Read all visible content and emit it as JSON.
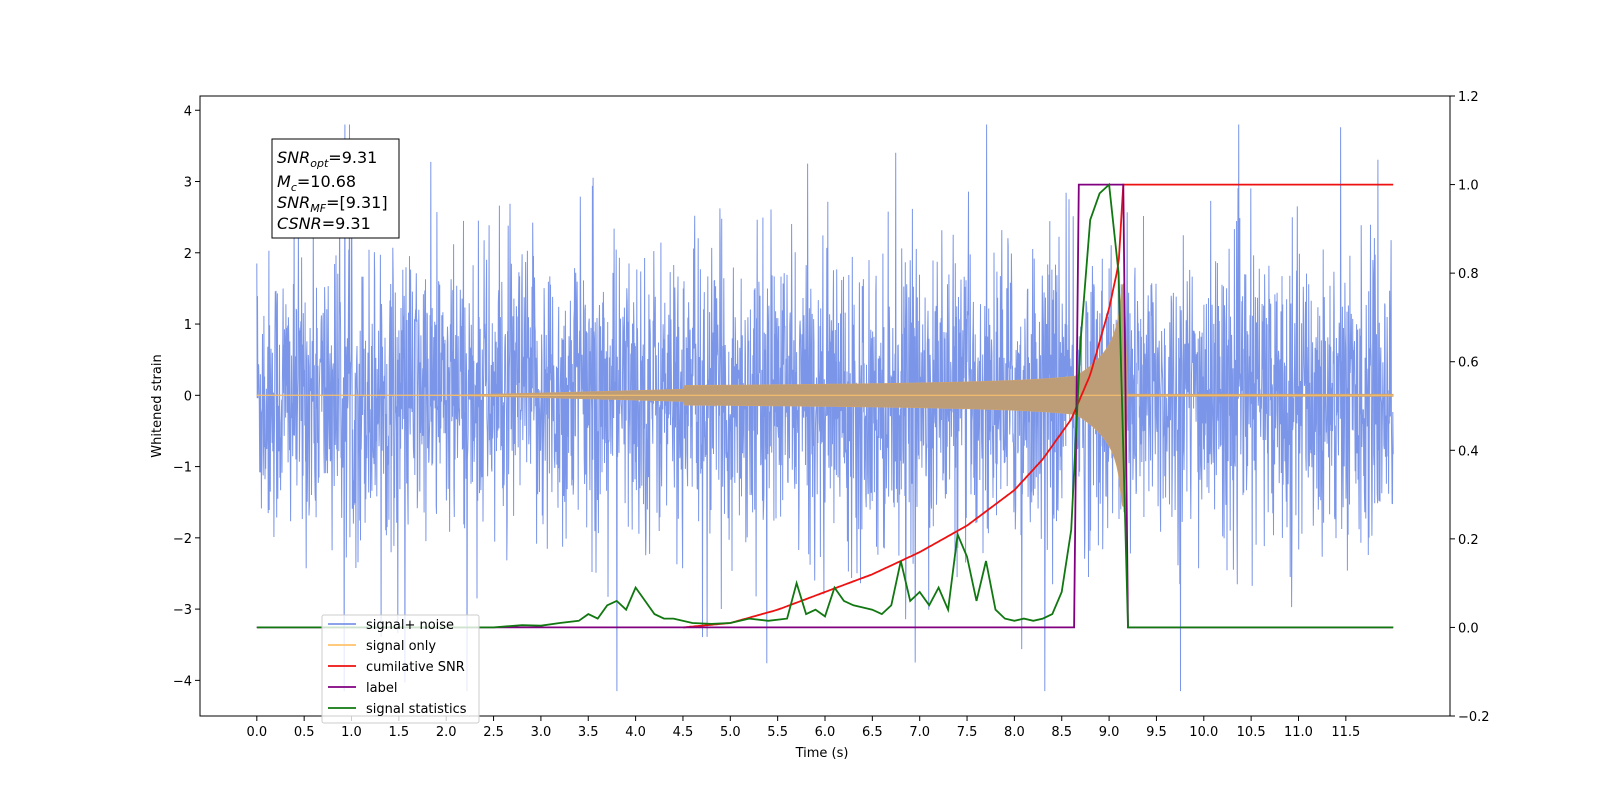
{
  "chart_data": {
    "type": "line",
    "xlabel": "Time (s)",
    "ylabel": "Whitened strain",
    "xlim": [
      -0.6,
      12.6
    ],
    "ylim": [
      -4.5,
      4.2
    ],
    "y2lim": [
      -0.2,
      1.2
    ],
    "xticks": [
      "0.0",
      "0.5",
      "1.0",
      "1.5",
      "2.0",
      "2.5",
      "3.0",
      "3.5",
      "4.0",
      "4.5",
      "5.0",
      "5.5",
      "6.0",
      "6.5",
      "7.0",
      "7.5",
      "8.0",
      "8.5",
      "9.0",
      "9.5",
      "10.0",
      "10.5",
      "11.0",
      "11.5"
    ],
    "yticks": [
      "4",
      "3",
      "2",
      "1",
      "0",
      "−1",
      "−2",
      "−3",
      "−4"
    ],
    "y2ticks": [
      "1.2",
      "1.0",
      "0.8",
      "0.6",
      "0.4",
      "0.2",
      "0.0",
      "−0.2"
    ],
    "legend_position": "lower-left",
    "legend": [
      {
        "label": "signal+ noise",
        "color": "#7b96e8"
      },
      {
        "label": "signal only",
        "color": "#ffc36a"
      },
      {
        "label": "cumilative SNR",
        "color": "#ee1111"
      },
      {
        "label": "label",
        "color": "#800080"
      },
      {
        "label": "signal statistics",
        "color": "#117711"
      }
    ],
    "annotation": {
      "snr_opt": {
        "base": "SNR",
        "sub": "opt",
        "value": "=9.31"
      },
      "mc": {
        "base": "M",
        "sub": "c",
        "value": "=10.68"
      },
      "snr_mf": {
        "base": "SNR",
        "sub": "MF",
        "value": "=[9.31]"
      },
      "csnr": {
        "base": "CSNR",
        "value": "=9.31"
      }
    },
    "series": [
      {
        "name": "signal+ noise",
        "axis": "left",
        "color": "#7b96e8",
        "description_amplitude": 2.6,
        "x_range": [
          0.0,
          12.0
        ]
      },
      {
        "name": "signal only",
        "axis": "left",
        "color": "#ffc36a",
        "chirp_merger_time": 9.15,
        "peak_amplitude": 1.0
      },
      {
        "name": "cumilative SNR",
        "axis": "right",
        "color": "#ee1111",
        "x": [
          4.5,
          5.0,
          5.5,
          6.0,
          6.5,
          7.0,
          7.5,
          8.0,
          8.3,
          8.6,
          8.8,
          9.0,
          9.1,
          9.15,
          9.2,
          12.0
        ],
        "y": [
          0.0,
          0.01,
          0.04,
          0.08,
          0.12,
          0.17,
          0.23,
          0.31,
          0.38,
          0.47,
          0.57,
          0.72,
          0.82,
          1.0,
          1.0,
          1.0
        ]
      },
      {
        "name": "label",
        "axis": "right",
        "color": "#800080",
        "x": [
          0.0,
          8.63,
          8.68,
          9.15,
          9.2,
          12.0
        ],
        "y": [
          0.0,
          0.0,
          1.0,
          1.0,
          0.0,
          0.0
        ]
      },
      {
        "name": "signal statistics",
        "axis": "right",
        "color": "#117711",
        "x": [
          0.0,
          2.5,
          2.8,
          3.0,
          3.2,
          3.4,
          3.5,
          3.6,
          3.7,
          3.8,
          3.9,
          4.0,
          4.1,
          4.2,
          4.3,
          4.4,
          4.6,
          4.8,
          5.0,
          5.2,
          5.4,
          5.6,
          5.7,
          5.8,
          5.9,
          6.0,
          6.1,
          6.2,
          6.3,
          6.4,
          6.5,
          6.6,
          6.7,
          6.8,
          6.9,
          7.0,
          7.1,
          7.2,
          7.3,
          7.4,
          7.5,
          7.6,
          7.7,
          7.8,
          7.9,
          8.0,
          8.1,
          8.2,
          8.3,
          8.4,
          8.5,
          8.6,
          8.7,
          8.8,
          8.9,
          9.0,
          9.1,
          9.15,
          9.2,
          12.0
        ],
        "y": [
          0.0,
          0.0,
          0.005,
          0.004,
          0.01,
          0.015,
          0.03,
          0.02,
          0.05,
          0.06,
          0.04,
          0.09,
          0.06,
          0.03,
          0.02,
          0.02,
          0.01,
          0.008,
          0.01,
          0.02,
          0.015,
          0.02,
          0.1,
          0.03,
          0.04,
          0.025,
          0.09,
          0.06,
          0.05,
          0.045,
          0.04,
          0.03,
          0.05,
          0.15,
          0.06,
          0.08,
          0.05,
          0.09,
          0.04,
          0.21,
          0.16,
          0.06,
          0.15,
          0.04,
          0.02,
          0.015,
          0.02,
          0.015,
          0.02,
          0.03,
          0.08,
          0.22,
          0.65,
          0.92,
          0.98,
          1.0,
          0.8,
          0.4,
          0.0,
          0.0
        ]
      }
    ]
  }
}
